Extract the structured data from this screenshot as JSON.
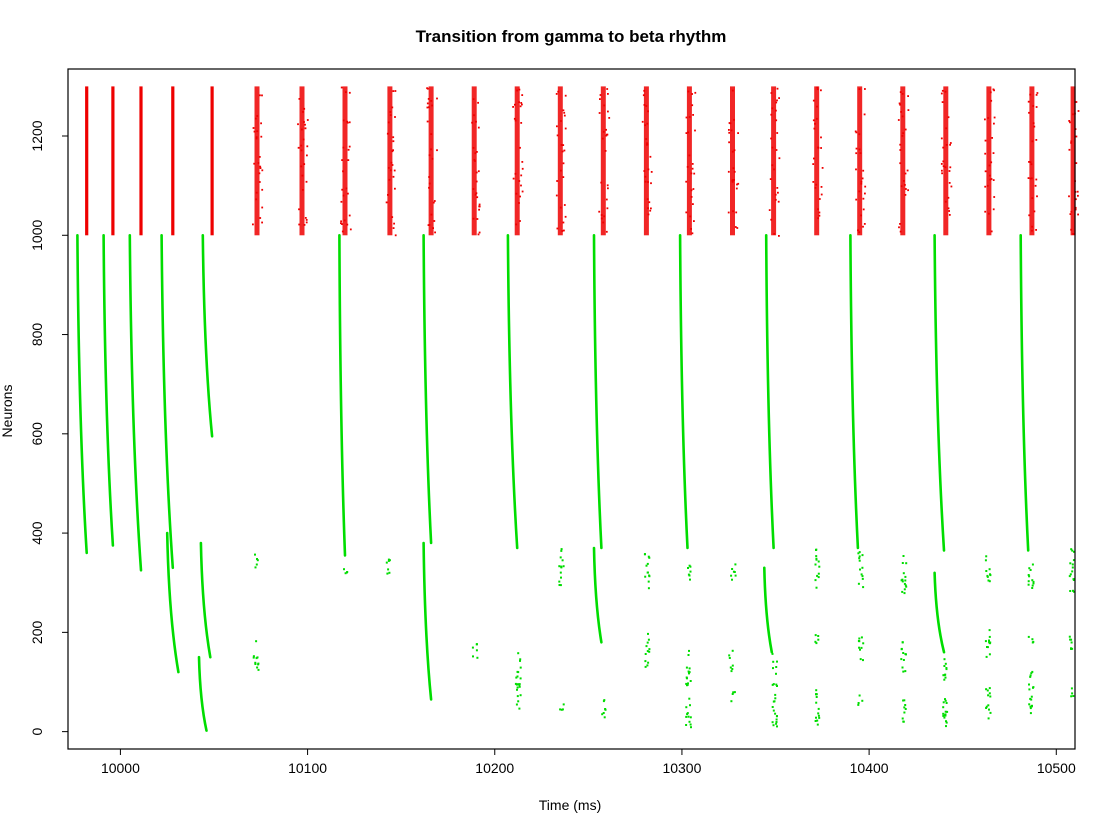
{
  "chart_data": {
    "type": "scatter",
    "title": "Transition from gamma to beta rhythm",
    "xlabel": "Time (ms)",
    "ylabel": "Neurons",
    "xlim": [
      9972,
      10510
    ],
    "ylim": [
      -35,
      1335
    ],
    "x_ticks": [
      10000,
      10100,
      10200,
      10300,
      10400,
      10500
    ],
    "y_ticks": [
      0,
      200,
      400,
      600,
      800,
      1000,
      1200
    ],
    "grid": false,
    "legend": "none",
    "colors": {
      "excitatory": "#ee0000",
      "inhibitory": "#00dd00"
    },
    "series": [
      {
        "color_key": "excitatory",
        "neuron_range": [
          1000,
          1300
        ],
        "burst_times": [
          9982,
          9996,
          10011,
          10028,
          10049,
          10073,
          10097,
          10120,
          10144,
          10166,
          10189,
          10212,
          10235,
          10258,
          10281,
          10304,
          10327,
          10349,
          10372,
          10395,
          10418,
          10441,
          10464,
          10487,
          10509
        ]
      },
      {
        "color_key": "inhibitory",
        "volleys": [
          {
            "x": [
              9977,
              9982
            ],
            "y": [
              1000,
              360
            ]
          },
          {
            "x": [
              9991,
              9996
            ],
            "y": [
              1000,
              375
            ]
          },
          {
            "x": [
              10005,
              10011
            ],
            "y": [
              1000,
              325
            ]
          },
          {
            "x": [
              10022,
              10028
            ],
            "y": [
              1000,
              330
            ]
          },
          {
            "x": [
              10025,
              10031
            ],
            "y": [
              400,
              120
            ]
          },
          {
            "x": [
              10044,
              10049
            ],
            "y": [
              1000,
              595
            ]
          },
          {
            "x": [
              10043,
              10048
            ],
            "y": [
              380,
              150
            ]
          },
          {
            "x": [
              10042,
              10046
            ],
            "y": [
              150,
              2
            ]
          },
          {
            "x": [
              10117,
              10120
            ],
            "y": [
              1000,
              355
            ]
          },
          {
            "x": [
              10162,
              10166
            ],
            "y": [
              1000,
              380
            ]
          },
          {
            "x": [
              10162,
              10166
            ],
            "y": [
              380,
              65
            ]
          },
          {
            "x": [
              10207,
              10212
            ],
            "y": [
              1000,
              370
            ]
          },
          {
            "x": [
              10253,
              10257
            ],
            "y": [
              1000,
              370
            ]
          },
          {
            "x": [
              10253,
              10257
            ],
            "y": [
              370,
              180
            ]
          },
          {
            "x": [
              10299,
              10303
            ],
            "y": [
              1000,
              370
            ]
          },
          {
            "x": [
              10345,
              10349
            ],
            "y": [
              1000,
              370
            ]
          },
          {
            "x": [
              10344,
              10348
            ],
            "y": [
              330,
              160
            ]
          },
          {
            "x": [
              10390,
              10394
            ],
            "y": [
              1000,
              370
            ]
          },
          {
            "x": [
              10435,
              10440
            ],
            "y": [
              1000,
              365
            ]
          },
          {
            "x": [
              10435,
              10440
            ],
            "y": [
              320,
              160
            ]
          },
          {
            "x": [
              10481,
              10485
            ],
            "y": [
              1000,
              365
            ]
          }
        ],
        "clusters": [
          {
            "x": 10072,
            "y": [
              330,
              360
            ]
          },
          {
            "x": 10072,
            "y": [
              120,
              185
            ]
          },
          {
            "x": 10120,
            "y": [
              320,
              340
            ]
          },
          {
            "x": 10143,
            "y": [
              310,
              350
            ]
          },
          {
            "x": 10189,
            "y": [
              150,
              185
            ]
          },
          {
            "x": 10212,
            "y": [
              30,
              165
            ]
          },
          {
            "x": 10235,
            "y": [
              290,
              370
            ]
          },
          {
            "x": 10235,
            "y": [
              45,
              60
            ]
          },
          {
            "x": 10258,
            "y": [
              30,
              75
            ]
          },
          {
            "x": 10281,
            "y": [
              290,
              370
            ]
          },
          {
            "x": 10281,
            "y": [
              130,
              200
            ]
          },
          {
            "x": 10303,
            "y": [
              300,
              340
            ]
          },
          {
            "x": 10303,
            "y": [
              10,
              165
            ]
          },
          {
            "x": 10327,
            "y": [
              300,
              340
            ]
          },
          {
            "x": 10326,
            "y": [
              120,
              165
            ]
          },
          {
            "x": 10327,
            "y": [
              60,
              90
            ]
          },
          {
            "x": 10349,
            "y": [
              10,
              160
            ]
          },
          {
            "x": 10372,
            "y": [
              290,
              370
            ]
          },
          {
            "x": 10372,
            "y": [
              170,
              200
            ]
          },
          {
            "x": 10372,
            "y": [
              10,
              95
            ]
          },
          {
            "x": 10395,
            "y": [
              290,
              370
            ]
          },
          {
            "x": 10395,
            "y": [
              140,
              200
            ]
          },
          {
            "x": 10395,
            "y": [
              50,
              75
            ]
          },
          {
            "x": 10418,
            "y": [
              280,
              370
            ]
          },
          {
            "x": 10418,
            "y": [
              110,
              185
            ]
          },
          {
            "x": 10418,
            "y": [
              20,
              75
            ]
          },
          {
            "x": 10440,
            "y": [
              10,
              165
            ]
          },
          {
            "x": 10463,
            "y": [
              300,
              360
            ]
          },
          {
            "x": 10463,
            "y": [
              150,
              215
            ]
          },
          {
            "x": 10463,
            "y": [
              20,
              90
            ]
          },
          {
            "x": 10486,
            "y": [
              290,
              360
            ]
          },
          {
            "x": 10486,
            "y": [
              180,
              195
            ]
          },
          {
            "x": 10486,
            "y": [
              30,
              130
            ]
          },
          {
            "x": 10508,
            "y": [
              280,
              370
            ]
          },
          {
            "x": 10508,
            "y": [
              160,
              200
            ]
          },
          {
            "x": 10508,
            "y": [
              70,
              90
            ]
          }
        ]
      }
    ]
  }
}
